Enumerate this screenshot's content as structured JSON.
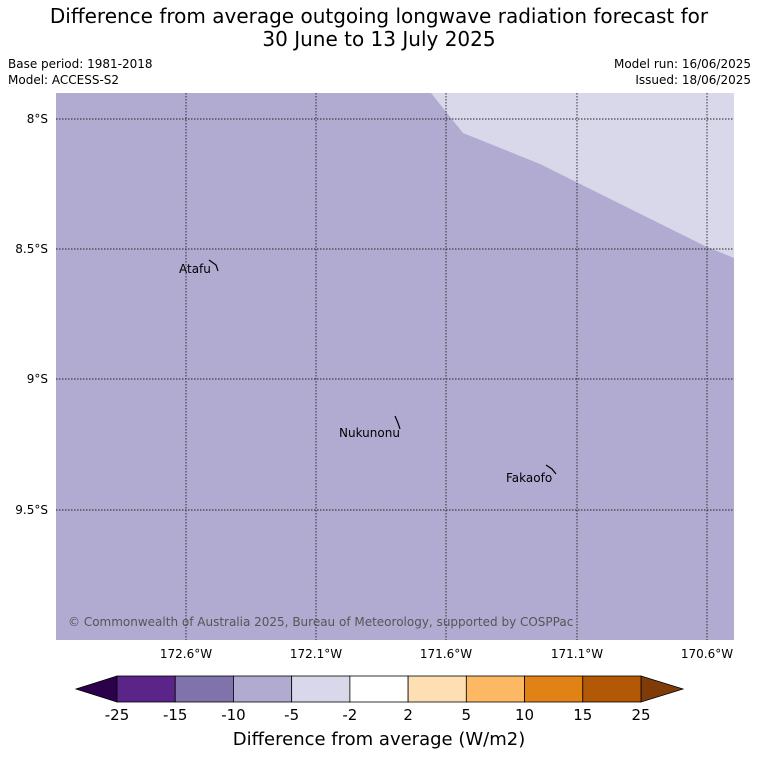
{
  "title_line1": "Difference from average outgoing longwave radiation forecast for",
  "title_line2": "30 June to 13 July 2025",
  "base_period": "Base period: 1981-2018",
  "model": "Model: ACCESS-S2",
  "model_run": "Model run: 16/06/2025",
  "issued": "Issued: 18/06/2025",
  "copyright": "© Commonwealth of Australia 2025, Bureau of Meteorology, supported by COSPPac",
  "lat_labels": [
    "8°S",
    "8.5°S",
    "9°S",
    "9.5°S"
  ],
  "lon_labels": [
    "172.6°W",
    "172.1°W",
    "171.6°W",
    "171.1°W",
    "170.6°W"
  ],
  "places": [
    {
      "name": "Atafu"
    },
    {
      "name": "Nukunonu"
    },
    {
      "name": "Fakaofo"
    }
  ],
  "fill_colors": {
    "band_minus10_minus5": "#b1abd2",
    "band_minus5_minus2": "#d8d8ea"
  },
  "colorbar": {
    "ticks": [
      "-25",
      "-15",
      "-10",
      "-5",
      "-2",
      "2",
      "5",
      "10",
      "15",
      "25"
    ],
    "colors": [
      "#5b2489",
      "#8073ac",
      "#b1abd2",
      "#d8d8ea",
      "#ffffff",
      "#fedfb4",
      "#fdb863",
      "#e08214",
      "#b35806"
    ],
    "low_extend_color": "#2d004b",
    "high_extend_color": "#7f3b08",
    "label": "Difference from average (W/m2)"
  }
}
